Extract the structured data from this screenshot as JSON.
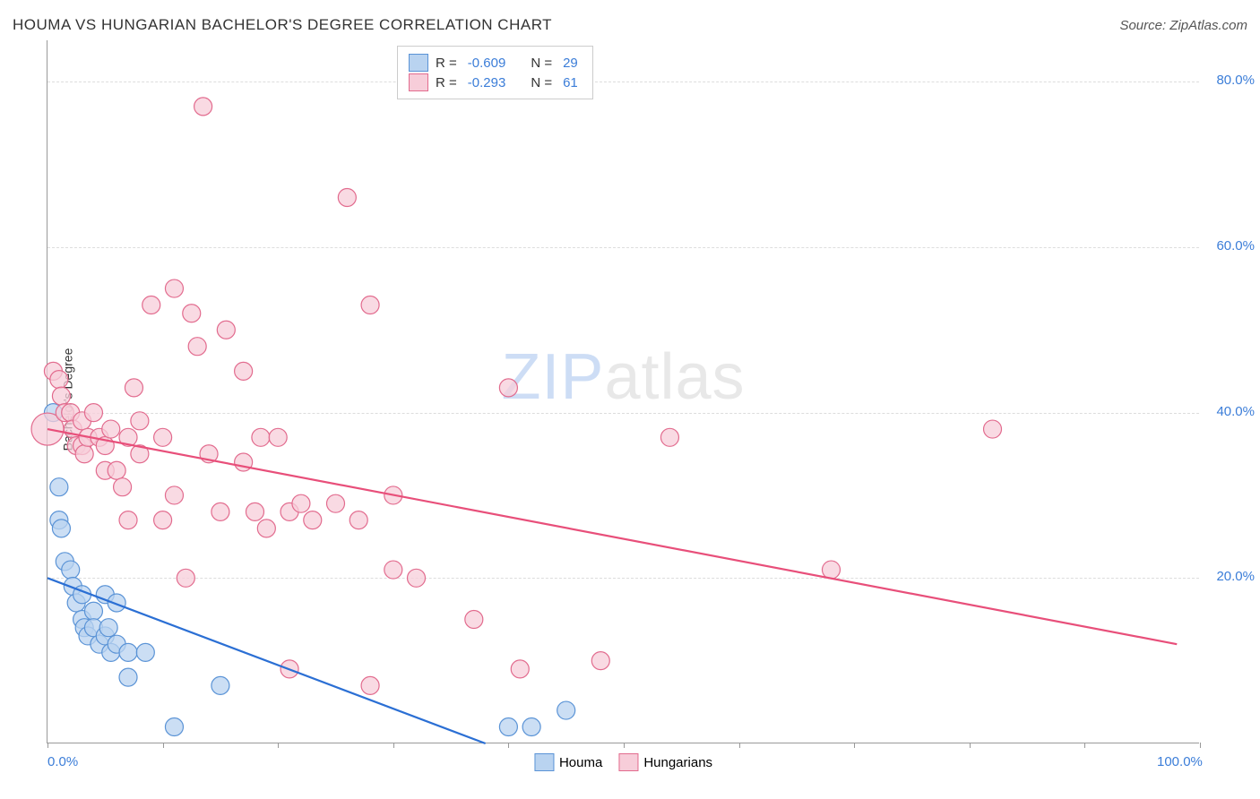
{
  "header": {
    "title": "HOUMA VS HUNGARIAN BACHELOR'S DEGREE CORRELATION CHART",
    "source": "Source: ZipAtlas.com"
  },
  "watermark": {
    "left": "ZIP",
    "right": "atlas"
  },
  "chart": {
    "type": "scatter",
    "y_axis_label": "Bachelor's Degree",
    "background_color": "#ffffff",
    "grid_color": "#dddddd",
    "axis_color": "#999999",
    "tick_label_color": "#3b7dd8",
    "tick_label_fontsize": 15,
    "xlim": [
      0,
      100
    ],
    "ylim": [
      0,
      85
    ],
    "x_ticks": [
      0,
      10,
      20,
      30,
      40,
      50,
      60,
      70,
      80,
      90,
      100
    ],
    "x_tick_labels": {
      "0": "0.0%",
      "100": "100.0%"
    },
    "y_ticks": [
      20,
      40,
      60,
      80
    ],
    "y_tick_labels": {
      "20": "20.0%",
      "40": "40.0%",
      "60": "60.0%",
      "80": "80.0%"
    },
    "series": [
      {
        "name": "Houma",
        "marker_fill": "#b9d3f0",
        "marker_stroke": "#5a93d6",
        "marker_opacity": 0.75,
        "marker_radius": 10,
        "line_color": "#2b6fd4",
        "line_width": 2.2,
        "r": "-0.609",
        "n": "29",
        "trend": {
          "x1": 0,
          "y1": 20,
          "x2": 38,
          "y2": 0
        },
        "points": [
          {
            "x": 0.5,
            "y": 40,
            "r": 10
          },
          {
            "x": 1,
            "y": 31,
            "r": 10
          },
          {
            "x": 1,
            "y": 27,
            "r": 10
          },
          {
            "x": 1.2,
            "y": 26,
            "r": 10
          },
          {
            "x": 1.5,
            "y": 22,
            "r": 10
          },
          {
            "x": 2,
            "y": 21,
            "r": 10
          },
          {
            "x": 2.2,
            "y": 19,
            "r": 10
          },
          {
            "x": 2.5,
            "y": 17,
            "r": 10
          },
          {
            "x": 3,
            "y": 18,
            "r": 10
          },
          {
            "x": 3,
            "y": 15,
            "r": 10
          },
          {
            "x": 3.2,
            "y": 14,
            "r": 10
          },
          {
            "x": 3.5,
            "y": 13,
            "r": 10
          },
          {
            "x": 4,
            "y": 16,
            "r": 10
          },
          {
            "x": 4,
            "y": 14,
            "r": 10
          },
          {
            "x": 4.5,
            "y": 12,
            "r": 10
          },
          {
            "x": 5,
            "y": 18,
            "r": 10
          },
          {
            "x": 5,
            "y": 13,
            "r": 10
          },
          {
            "x": 5.3,
            "y": 14,
            "r": 10
          },
          {
            "x": 5.5,
            "y": 11,
            "r": 10
          },
          {
            "x": 6,
            "y": 17,
            "r": 10
          },
          {
            "x": 6,
            "y": 12,
            "r": 10
          },
          {
            "x": 7,
            "y": 11,
            "r": 10
          },
          {
            "x": 7,
            "y": 8,
            "r": 10
          },
          {
            "x": 8.5,
            "y": 11,
            "r": 10
          },
          {
            "x": 11,
            "y": 2,
            "r": 10
          },
          {
            "x": 15,
            "y": 7,
            "r": 10
          },
          {
            "x": 40,
            "y": 2,
            "r": 10
          },
          {
            "x": 42,
            "y": 2,
            "r": 10
          },
          {
            "x": 45,
            "y": 4,
            "r": 10
          }
        ]
      },
      {
        "name": "Hungarians",
        "marker_fill": "#f7cdd9",
        "marker_stroke": "#e26b8e",
        "marker_opacity": 0.75,
        "marker_radius": 10,
        "line_color": "#e84f7a",
        "line_width": 2.2,
        "r": "-0.293",
        "n": "61",
        "trend": {
          "x1": 0,
          "y1": 38,
          "x2": 98,
          "y2": 12
        },
        "points": [
          {
            "x": 0,
            "y": 38,
            "r": 18
          },
          {
            "x": 0.5,
            "y": 45,
            "r": 10
          },
          {
            "x": 1,
            "y": 44,
            "r": 10
          },
          {
            "x": 1.2,
            "y": 42,
            "r": 10
          },
          {
            "x": 1.5,
            "y": 40,
            "r": 10
          },
          {
            "x": 2,
            "y": 40,
            "r": 10
          },
          {
            "x": 2.2,
            "y": 38,
            "r": 10
          },
          {
            "x": 2.5,
            "y": 36,
            "r": 10
          },
          {
            "x": 3,
            "y": 39,
            "r": 10
          },
          {
            "x": 3,
            "y": 36,
            "r": 10
          },
          {
            "x": 3.2,
            "y": 35,
            "r": 10
          },
          {
            "x": 3.5,
            "y": 37,
            "r": 10
          },
          {
            "x": 4,
            "y": 40,
            "r": 10
          },
          {
            "x": 4.5,
            "y": 37,
            "r": 10
          },
          {
            "x": 5,
            "y": 36,
            "r": 10
          },
          {
            "x": 5,
            "y": 33,
            "r": 10
          },
          {
            "x": 5.5,
            "y": 38,
            "r": 10
          },
          {
            "x": 6,
            "y": 33,
            "r": 10
          },
          {
            "x": 6.5,
            "y": 31,
            "r": 10
          },
          {
            "x": 7,
            "y": 37,
            "r": 10
          },
          {
            "x": 7,
            "y": 27,
            "r": 10
          },
          {
            "x": 7.5,
            "y": 43,
            "r": 10
          },
          {
            "x": 8,
            "y": 35,
            "r": 10
          },
          {
            "x": 8,
            "y": 39,
            "r": 10
          },
          {
            "x": 9,
            "y": 53,
            "r": 10
          },
          {
            "x": 10,
            "y": 27,
            "r": 10
          },
          {
            "x": 10,
            "y": 37,
            "r": 10
          },
          {
            "x": 11,
            "y": 30,
            "r": 10
          },
          {
            "x": 11,
            "y": 55,
            "r": 10
          },
          {
            "x": 12,
            "y": 20,
            "r": 10
          },
          {
            "x": 12.5,
            "y": 52,
            "r": 10
          },
          {
            "x": 13,
            "y": 48,
            "r": 10
          },
          {
            "x": 13.5,
            "y": 77,
            "r": 10
          },
          {
            "x": 14,
            "y": 35,
            "r": 10
          },
          {
            "x": 15,
            "y": 28,
            "r": 10
          },
          {
            "x": 15.5,
            "y": 50,
            "r": 10
          },
          {
            "x": 17,
            "y": 34,
            "r": 10
          },
          {
            "x": 17,
            "y": 45,
            "r": 10
          },
          {
            "x": 18,
            "y": 28,
            "r": 10
          },
          {
            "x": 18.5,
            "y": 37,
            "r": 10
          },
          {
            "x": 19,
            "y": 26,
            "r": 10
          },
          {
            "x": 20,
            "y": 37,
            "r": 10
          },
          {
            "x": 21,
            "y": 28,
            "r": 10
          },
          {
            "x": 21,
            "y": 9,
            "r": 10
          },
          {
            "x": 22,
            "y": 29,
            "r": 10
          },
          {
            "x": 23,
            "y": 27,
            "r": 10
          },
          {
            "x": 25,
            "y": 29,
            "r": 10
          },
          {
            "x": 26,
            "y": 66,
            "r": 10
          },
          {
            "x": 27,
            "y": 27,
            "r": 10
          },
          {
            "x": 28,
            "y": 7,
            "r": 10
          },
          {
            "x": 28,
            "y": 53,
            "r": 10
          },
          {
            "x": 30,
            "y": 21,
            "r": 10
          },
          {
            "x": 30,
            "y": 30,
            "r": 10
          },
          {
            "x": 32,
            "y": 20,
            "r": 10
          },
          {
            "x": 37,
            "y": 15,
            "r": 10
          },
          {
            "x": 40,
            "y": 43,
            "r": 10
          },
          {
            "x": 41,
            "y": 9,
            "r": 10
          },
          {
            "x": 48,
            "y": 10,
            "r": 10
          },
          {
            "x": 54,
            "y": 37,
            "r": 10
          },
          {
            "x": 68,
            "y": 21,
            "r": 10
          },
          {
            "x": 82,
            "y": 38,
            "r": 10
          }
        ]
      }
    ],
    "legend_top": {
      "r_label": "R =",
      "n_label": "N ="
    },
    "legend_bottom": [
      {
        "label": "Houma",
        "fill": "#b9d3f0",
        "stroke": "#5a93d6"
      },
      {
        "label": "Hungarians",
        "fill": "#f7cdd9",
        "stroke": "#e26b8e"
      }
    ]
  }
}
